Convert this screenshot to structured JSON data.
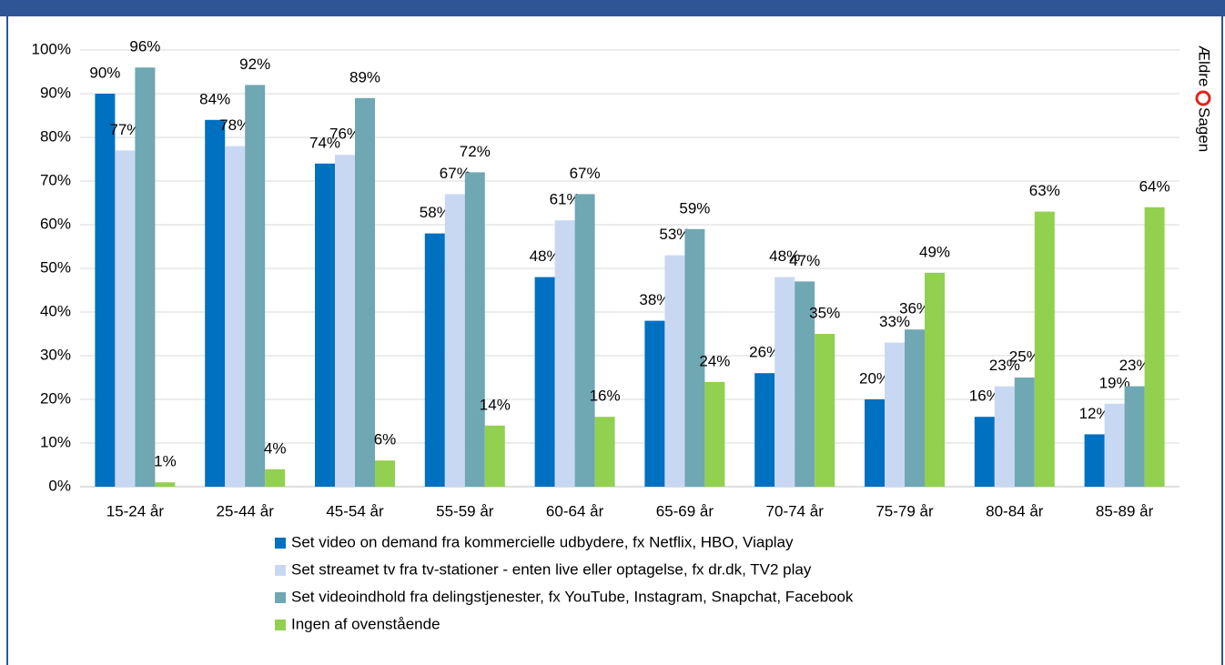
{
  "chart_data": {
    "type": "bar",
    "logo": [
      "Ældre",
      "Sagen"
    ],
    "categories": [
      "15-24 år",
      "25-44 år",
      "45-54 år",
      "55-59 år",
      "60-64 år",
      "65-69 år",
      "70-74 år",
      "75-79 år",
      "80-84 år",
      "85-89 år"
    ],
    "series": [
      {
        "name": "Set video on demand fra kommercielle udbydere, fx Netflix, HBO, Viaplay",
        "color": "#0070c0",
        "values": [
          90,
          84,
          74,
          58,
          48,
          38,
          26,
          20,
          16,
          12
        ],
        "value_labels": [
          "90%",
          "84%",
          "74%",
          "58%",
          "48%",
          "38%",
          "26%",
          "20%",
          "16%",
          "12%"
        ]
      },
      {
        "name": "Set streamet tv fra tv-stationer - enten live eller optagelse, fx dr.dk, TV2 play",
        "color": "#c9d8f2",
        "values": [
          77,
          78,
          76,
          67,
          61,
          53,
          48,
          33,
          23,
          19
        ],
        "value_labels": [
          "77%",
          "78%",
          "76%",
          "67%",
          "61%",
          "53%",
          "48%",
          "33%",
          "23%",
          "19%"
        ]
      },
      {
        "name": "Set videoindhold fra delingstjenester, fx YouTube, Instagram, Snapchat, Facebook",
        "color": "#6fa7b3",
        "values": [
          96,
          92,
          89,
          72,
          67,
          59,
          47,
          36,
          25,
          23
        ],
        "value_labels": [
          "96%",
          "92%",
          "89%",
          "72%",
          "67%",
          "59%",
          "47%",
          "36%",
          "25%",
          "23%"
        ]
      },
      {
        "name": "Ingen af ovenstående",
        "color": "#92d050",
        "values": [
          1,
          4,
          6,
          14,
          16,
          24,
          35,
          49,
          63,
          64
        ],
        "value_labels": [
          "1%",
          "4%",
          "6%",
          "14%",
          "16%",
          "24%",
          "35%",
          "49%",
          "63%",
          "64%"
        ]
      }
    ],
    "ylim": [
      0,
      100
    ],
    "yticks": [
      {
        "value": 0,
        "label": "0%"
      },
      {
        "value": 10,
        "label": "10%"
      },
      {
        "value": 20,
        "label": "20%"
      },
      {
        "value": 30,
        "label": "30%"
      },
      {
        "value": 40,
        "label": "40%"
      },
      {
        "value": 50,
        "label": "50%"
      },
      {
        "value": 60,
        "label": "60%"
      },
      {
        "value": 70,
        "label": "70%"
      },
      {
        "value": 80,
        "label": "80%"
      },
      {
        "value": 90,
        "label": "90%"
      },
      {
        "value": 100,
        "label": "100%"
      }
    ],
    "grid": true
  }
}
